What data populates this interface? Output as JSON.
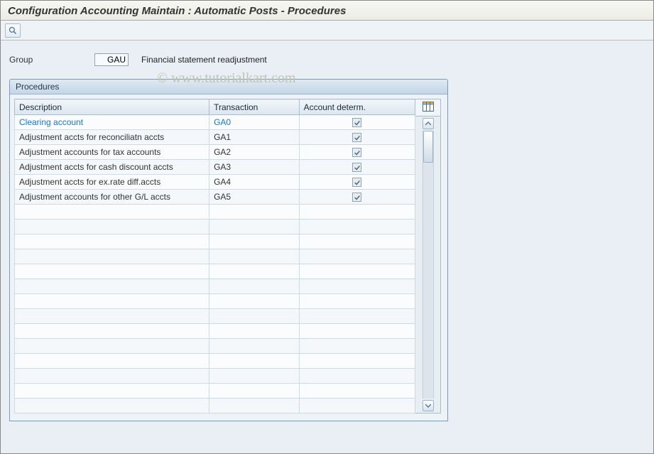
{
  "page_title": "Configuration Accounting Maintain : Automatic Posts - Procedures",
  "watermark": "© www.tutorialkart.com",
  "toolbar": {
    "details_button_title": "Details"
  },
  "group": {
    "label": "Group",
    "code": "GAU",
    "description": "Financial statement readjustment"
  },
  "panel": {
    "title": "Procedures",
    "columns": {
      "description": "Description",
      "transaction": "Transaction",
      "account_determ": "Account determ."
    },
    "config_button_title": "Configure columns",
    "rows": [
      {
        "description": "Clearing account",
        "transaction": "GA0",
        "account_determ": true,
        "highlight": true
      },
      {
        "description": "Adjustment accts for reconciliatn accts",
        "transaction": "GA1",
        "account_determ": true,
        "highlight": false
      },
      {
        "description": "Adjustment accounts for tax accounts",
        "transaction": "GA2",
        "account_determ": true,
        "highlight": false
      },
      {
        "description": "Adjustment accts for cash discount accts",
        "transaction": "GA3",
        "account_determ": true,
        "highlight": false
      },
      {
        "description": "Adjustment accts for ex.rate diff.accts",
        "transaction": "GA4",
        "account_determ": true,
        "highlight": false
      },
      {
        "description": "Adjustment accounts for other G/L accts",
        "transaction": "GA5",
        "account_determ": true,
        "highlight": false
      }
    ],
    "empty_rows": 14
  },
  "colors": {
    "header_bg": "#dce6ef",
    "panel_border": "#7a9ab8",
    "body_bg": "#e9eff5",
    "highlight_text": "#1677d6"
  }
}
